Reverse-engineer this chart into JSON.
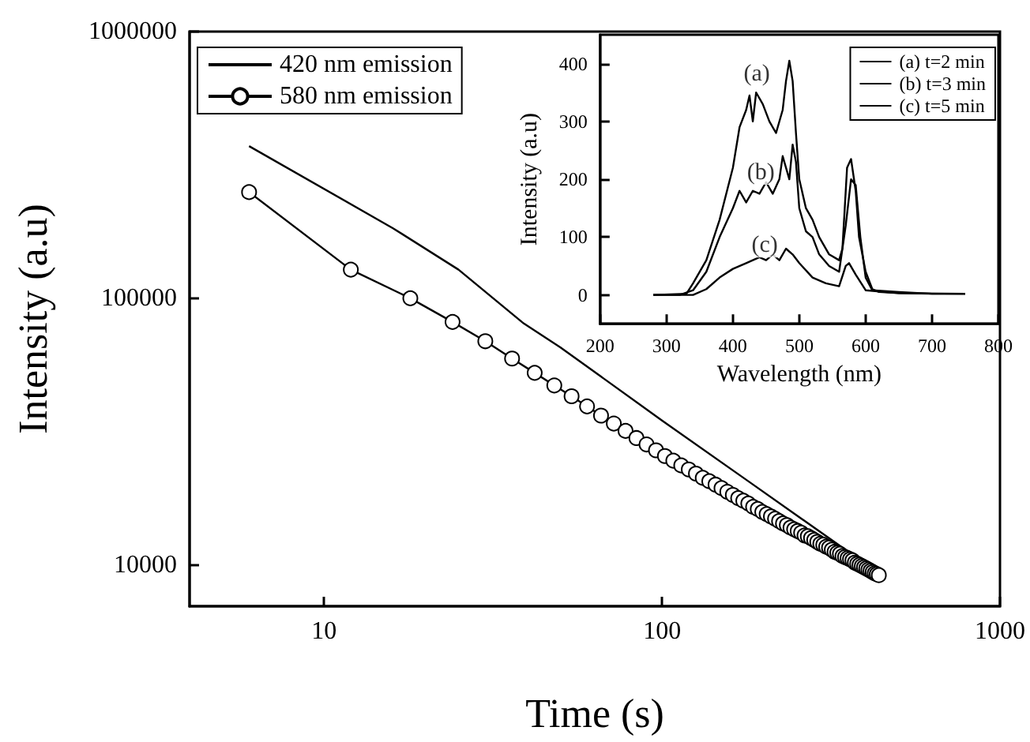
{
  "chart_data": [
    {
      "type": "line",
      "xlabel": "Time (s)",
      "ylabel": "Intensity (a.u)",
      "log": "xy",
      "xlim": [
        4,
        1000
      ],
      "xticks": [
        10,
        100,
        1000
      ],
      "ylim": [
        7000,
        1000000
      ],
      "yticks": [
        10000,
        100000,
        1000000
      ],
      "legend": "top left",
      "series": [
        {
          "name": "420 nm emission",
          "color": "#000000",
          "marker": "none",
          "x": [
            6,
            16,
            25,
            39,
            50,
            100,
            180,
            356,
            408
          ],
          "values": [
            372000,
            183000,
            128000,
            80400,
            65500,
            34800,
            20600,
            11200,
            9860
          ]
        },
        {
          "name": "580 nm emission",
          "color": "#000000",
          "marker": "circle",
          "x": [
            6,
            12,
            18,
            24,
            30,
            36,
            42,
            48,
            54,
            60,
            66,
            72,
            78,
            84,
            90,
            96,
            102,
            108,
            114,
            120,
            126,
            132,
            138,
            144,
            150,
            156,
            162,
            168,
            174,
            180,
            186,
            192,
            198,
            204,
            210,
            216,
            222,
            228,
            234,
            240,
            246,
            252,
            258,
            264,
            270,
            276,
            282,
            288,
            294,
            300,
            306,
            312,
            318,
            324,
            330,
            336,
            342,
            348,
            354,
            360,
            366,
            372,
            378,
            384,
            390,
            396,
            402,
            408,
            414,
            420,
            426,
            432,
            438
          ],
          "values": [
            250000,
            128000,
            100000,
            81500,
            69000,
            59400,
            52500,
            47100,
            42900,
            39300,
            36300,
            33900,
            31800,
            29900,
            28300,
            26900,
            25600,
            24600,
            23600,
            22800,
            22000,
            21200,
            20600,
            20000,
            19400,
            18800,
            18300,
            17800,
            17400,
            17000,
            16500,
            16200,
            15800,
            15500,
            15200,
            14900,
            14600,
            14300,
            14100,
            13800,
            13600,
            13400,
            13200,
            12900,
            12800,
            12600,
            12400,
            12200,
            12000,
            11900,
            11700,
            11600,
            11400,
            11200,
            11100,
            11000,
            10800,
            10700,
            10600,
            10500,
            10400,
            10200,
            10100,
            10000,
            9900,
            9800,
            9700,
            9600,
            9500,
            9400,
            9300,
            9230,
            9150
          ]
        }
      ]
    },
    {
      "type": "line",
      "xlabel": "Wavelength (nm)",
      "ylabel": "Intensity (a.u)",
      "xlim": [
        200,
        800
      ],
      "xticks": [
        200,
        300,
        400,
        500,
        600,
        700,
        800
      ],
      "ylim": [
        -50,
        450
      ],
      "yticks": [
        0,
        100,
        200,
        300,
        400
      ],
      "legend": "top right",
      "annotations": [
        {
          "text": "(a)",
          "x": 436,
          "y": 382
        },
        {
          "text": "(b)",
          "x": 442,
          "y": 211
        },
        {
          "text": "(c)",
          "x": 448,
          "y": 85
        }
      ],
      "series": [
        {
          "name": "(a) t=2 min",
          "color": "#000000",
          "x": [
            280,
            330,
            340,
            360,
            380,
            400,
            410,
            420,
            425,
            430,
            435,
            445,
            455,
            465,
            475,
            480,
            485,
            490,
            495,
            500,
            510,
            520,
            530,
            545,
            560,
            565,
            572,
            578,
            585,
            590,
            600,
            610,
            620,
            650,
            700,
            750
          ],
          "values": [
            0,
            2,
            20,
            60,
            130,
            220,
            290,
            320,
            345,
            300,
            350,
            330,
            300,
            280,
            320,
            370,
            405,
            370,
            280,
            200,
            150,
            130,
            100,
            70,
            60,
            80,
            220,
            235,
            180,
            100,
            40,
            10,
            5,
            3,
            2,
            2
          ]
        },
        {
          "name": "(b) t=3 min",
          "color": "#000000",
          "x": [
            280,
            320,
            340,
            360,
            380,
            400,
            410,
            420,
            430,
            440,
            450,
            460,
            470,
            475,
            485,
            490,
            495,
            500,
            510,
            520,
            530,
            545,
            560,
            570,
            578,
            585,
            592,
            600,
            610,
            650,
            700,
            750
          ],
          "values": [
            0,
            0,
            8,
            40,
            100,
            150,
            180,
            160,
            180,
            175,
            195,
            175,
            200,
            240,
            200,
            260,
            230,
            150,
            110,
            100,
            70,
            50,
            40,
            120,
            200,
            190,
            100,
            30,
            8,
            5,
            2,
            2
          ]
        },
        {
          "name": "(c) t=5 min",
          "color": "#000000",
          "x": [
            280,
            340,
            360,
            380,
            400,
            420,
            440,
            450,
            460,
            470,
            480,
            490,
            500,
            520,
            540,
            560,
            570,
            575,
            585,
            600,
            650,
            750
          ],
          "values": [
            0,
            0,
            10,
            30,
            45,
            55,
            65,
            60,
            70,
            60,
            80,
            70,
            55,
            30,
            20,
            15,
            50,
            55,
            35,
            8,
            3,
            2
          ]
        }
      ]
    }
  ]
}
